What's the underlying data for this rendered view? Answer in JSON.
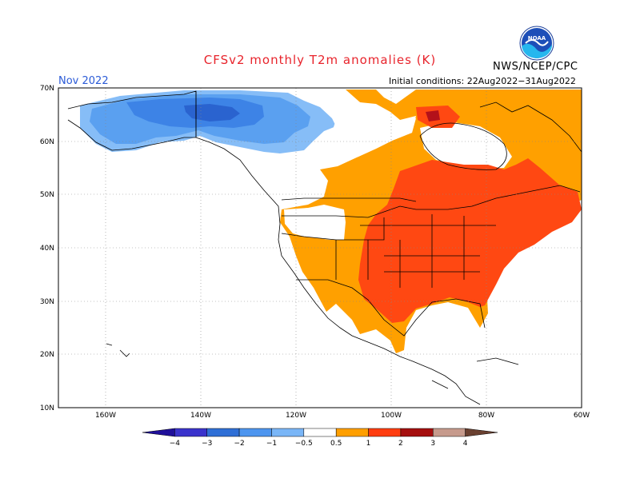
{
  "title": "CFSv2 monthly T2m anomalies (K)",
  "agency": "NWS/NCEP/CPC",
  "month": "Nov 2022",
  "initial_conditions": "Initial conditions: 22Aug2022−31Aug2022",
  "logo_text": "NOAA",
  "map": {
    "lon_range": [
      -170,
      -60
    ],
    "lat_range": [
      10,
      70
    ],
    "lat_labels": [
      "70N",
      "60N",
      "50N",
      "40N",
      "30N",
      "20N",
      "10N"
    ],
    "lon_labels": [
      "160W",
      "140W",
      "120W",
      "100W",
      "80W",
      "60W"
    ],
    "grid": "dotted"
  },
  "colorbar": {
    "labels": [
      "−4",
      "−3",
      "−2",
      "−1",
      "−0.5",
      "0.5",
      "1",
      "2",
      "3",
      "4"
    ],
    "colors": [
      "#1f0f9a",
      "#3a33cc",
      "#2f6fd6",
      "#4d95ef",
      "#7ab6f7",
      "#ffffff",
      "#ff9f00",
      "#ff3d10",
      "#a50f0f",
      "#c69a8c",
      "#6a4030"
    ]
  },
  "anomaly_colors": {
    "cold_1": "#5aa0f0",
    "cold_2": "#3d83e6",
    "cold_3": "#2a63cf",
    "cold_light": "#86bdf7",
    "warm_05": "#ffa000",
    "warm_1": "#ff4812",
    "warm_2": "#b3111a"
  }
}
